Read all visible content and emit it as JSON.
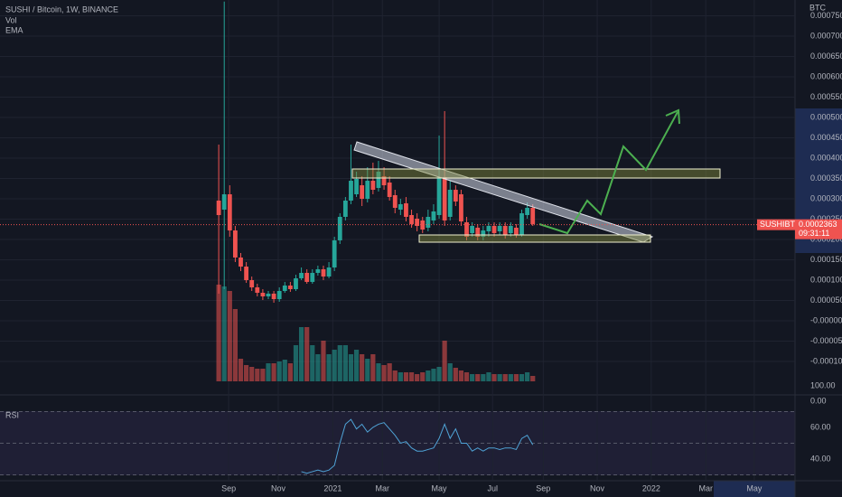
{
  "header": {
    "title": "SUSHI / Bitcoin, 1W, BINANCE",
    "indicators": [
      "Vol",
      "EMA"
    ],
    "currency": "BTC",
    "symbol": "SUSHIBTC",
    "countdown": "09:31:11"
  },
  "scale_labels": [
    "100.00",
    "0.00"
  ],
  "chart_data": [
    {
      "type": "candlestick",
      "up_color": "#26a69a",
      "down_color": "#ef5350",
      "categories": [
        null,
        null,
        null,
        null,
        null,
        null,
        null,
        null,
        null,
        null,
        null,
        null,
        null,
        null,
        null,
        null,
        null,
        null,
        null,
        null,
        null,
        null,
        null,
        null,
        null,
        null,
        null,
        null,
        null,
        null,
        null,
        null,
        null,
        null,
        null,
        null,
        null,
        null,
        null,
        null,
        null,
        null,
        null,
        null,
        null,
        null,
        null,
        null,
        null,
        null,
        null,
        null,
        null,
        null,
        null,
        null,
        null,
        null
      ],
      "open": [
        0.0002956,
        0.0002733,
        0.0003111,
        0.0002222,
        0.0001556,
        0.0001333,
        0.0001,
        8.22e-05,
        6.89e-05,
        6e-05,
        6.67e-05,
        5.33e-05,
        7.33e-05,
        8.67e-05,
        7.78e-05,
        0.0001044,
        0.0001178,
        9.56e-05,
        0.0001178,
        0.0001267,
        0.0001089,
        0.0001311,
        0.0001978,
        0.0002556,
        0.0002956,
        0.0003111,
        0.0003333,
        0.0003,
        0.0003444,
        0.0003267,
        0.0003556,
        0.00034,
        0.0003089,
        0.0002733,
        0.0002889,
        0.00026,
        0.0002511,
        0.0002467,
        0.0002289,
        0.0002467,
        0.00026,
        0.0003533,
        0.0002556,
        0.0003222,
        0.0003111,
        0.0002422,
        0.0002156,
        0.0002289,
        0.0002067,
        0.00022,
        0.0002333,
        0.00022,
        0.0002333,
        0.0002156,
        0.0002289,
        0.0002111,
        0.00026,
        0.0002778
      ],
      "high": [
        0.0004333,
        0.000785,
        0.0003333,
        0.0002333,
        0.0001667,
        0.0001444,
        0.0001089,
        9.11e-05,
        7.78e-05,
        7.33e-05,
        7.33e-05,
        8.22e-05,
        9.56e-05,
        9.56e-05,
        0.0001133,
        0.0001311,
        0.0001267,
        0.0001267,
        0.0001356,
        0.0001356,
        0.0001444,
        0.0002067,
        0.0002644,
        0.0003044,
        0.0004333,
        0.0003667,
        0.0003556,
        0.0003778,
        0.0003889,
        0.0003933,
        0.0003778,
        0.0003556,
        0.0003222,
        0.0003,
        0.0003044,
        0.0002733,
        0.0002644,
        0.0002556,
        0.0002733,
        0.0002867,
        0.0004556,
        0.0005156,
        0.0003444,
        0.0003333,
        0.0003222,
        0.0002556,
        0.0002422,
        0.0002378,
        0.0002333,
        0.0002422,
        0.0002422,
        0.0002422,
        0.0002422,
        0.0002422,
        0.0002378,
        0.0002733,
        0.0002911,
        0.0002867
      ],
      "low": [
        6.67e-05,
        7.78e-05,
        0.0002067,
        0.0001444,
        0.0001222,
        9.33e-05,
        7.33e-05,
        6e-05,
        5.11e-05,
        5.33e-05,
        4.44e-05,
        4.67e-05,
        6.89e-05,
        7.11e-05,
        7.33e-05,
        0.0001,
        9.11e-05,
        9.11e-05,
        0.0001111,
        0.0001,
        0.0001044,
        0.0001222,
        0.0001889,
        0.0002467,
        0.0002867,
        0.0003044,
        0.0002822,
        0.0002911,
        0.0003111,
        0.0003178,
        0.0003222,
        0.0002956,
        0.0002644,
        0.00026,
        0.0002444,
        0.0002289,
        0.00022,
        0.0002156,
        0.00022,
        0.0002378,
        0.0002511,
        0.0002333,
        0.0002467,
        0.0002822,
        0.0002333,
        0.0001978,
        0.0002067,
        0.0001978,
        0.0001978,
        0.0002067,
        0.0002067,
        0.0002111,
        0.0002022,
        0.0002067,
        0.0002044,
        0.0002067,
        0.0002511,
        0.0002333
      ],
      "close": [
        0.00026,
        0.0003111,
        0.0002222,
        0.0001556,
        0.0001333,
        0.0001,
        8.22e-05,
        6.89e-05,
        6e-05,
        6.67e-05,
        5.33e-05,
        7.33e-05,
        8.67e-05,
        7.78e-05,
        0.0001044,
        0.0001178,
        9.56e-05,
        0.0001178,
        0.0001267,
        0.0001089,
        0.0001311,
        0.0001978,
        0.0002556,
        0.0002956,
        0.0003444,
        0.0003489,
        0.0003,
        0.0003444,
        0.0003222,
        0.0003667,
        0.0003333,
        0.0003044,
        0.0002778,
        0.0002867,
        0.0002556,
        0.0002378,
        0.0002333,
        0.0002244,
        0.0002556,
        0.0002689,
        0.0003533,
        0.0002467,
        0.0003222,
        0.0002933,
        0.0002444,
        0.0002067,
        0.0002333,
        0.0002067,
        0.0002222,
        0.0002333,
        0.0002156,
        0.0002333,
        0.0002111,
        0.0002333,
        0.0002111,
        0.0002644,
        0.0002778,
        0.0002378
      ],
      "volume": [
        107,
        105,
        100,
        80,
        25,
        18,
        16,
        14,
        14,
        20,
        20,
        22,
        24,
        20,
        40,
        60,
        60,
        40,
        30,
        45,
        30,
        35,
        40,
        40,
        30,
        35,
        30,
        25,
        30,
        20,
        18,
        20,
        12,
        10,
        10,
        10,
        8,
        10,
        12,
        14,
        16,
        45,
        20,
        15,
        12,
        10,
        8,
        8,
        8,
        10,
        8,
        8,
        8,
        8,
        8,
        8,
        10,
        6
      ],
      "last_price": 0.0002363,
      "xlim": [
        -39.7,
        104.6
      ],
      "xticks": [
        {
          "value": 1.8,
          "label": "Sep"
        },
        {
          "value": 10.8,
          "label": "Nov"
        },
        {
          "value": 20.7,
          "label": "2021"
        },
        {
          "value": 29.7,
          "label": "Mar"
        },
        {
          "value": 40,
          "label": "May"
        },
        {
          "value": 49.7,
          "label": "Jul"
        },
        {
          "value": 58.9,
          "label": "Sep"
        },
        {
          "value": 68.7,
          "label": "Nov"
        },
        {
          "value": 78.5,
          "label": "2022"
        },
        {
          "value": 88.4,
          "label": "Mar"
        },
        {
          "value": 97.2,
          "label": "May"
        }
      ],
      "ylim": [
        -0.0001489,
        0.0007889
      ],
      "yticks": [
        {
          "value": 0.00075,
          "label": "0.0007500"
        },
        {
          "value": 0.0007,
          "label": "0.0007000"
        },
        {
          "value": 0.00065,
          "label": "0.0006500"
        },
        {
          "value": 0.0006,
          "label": "0.0006000"
        },
        {
          "value": 0.00055,
          "label": "0.0005500"
        },
        {
          "value": 0.0005,
          "label": "0.0005000"
        },
        {
          "value": 0.00045,
          "label": "0.0004500"
        },
        {
          "value": 0.0004,
          "label": "0.0004000"
        },
        {
          "value": 0.00035,
          "label": "0.0003500"
        },
        {
          "value": 0.0003,
          "label": "0.0003000"
        },
        {
          "value": 0.00025,
          "label": "0.0002500"
        },
        {
          "value": 0.0002,
          "label": "0.0002000"
        },
        {
          "value": 0.00015,
          "label": "0.0001500"
        },
        {
          "value": 0.0001,
          "label": "0.0001000"
        },
        {
          "value": 5e-05,
          "label": "0.0000500"
        },
        {
          "value": 0,
          "label": "-0.0000000"
        },
        {
          "value": -5e-05,
          "label": "-0.0000500"
        },
        {
          "value": -0.0001,
          "label": "-0.0001000"
        }
      ],
      "y2lim": [
        0,
        422
      ],
      "grid": true
    },
    {
      "type": "line",
      "title": "RSI",
      "color": "#4fa3d6",
      "values": [
        null,
        null,
        null,
        null,
        null,
        null,
        null,
        null,
        null,
        null,
        null,
        null,
        null,
        null,
        null,
        32,
        31,
        32,
        33,
        32,
        33,
        36,
        50,
        62,
        65,
        59,
        62,
        57,
        60,
        62,
        63,
        59,
        55,
        50,
        51,
        47,
        45,
        45,
        46,
        47,
        53,
        62,
        53,
        59,
        50,
        50,
        45,
        47,
        45,
        47,
        47,
        46,
        47,
        47,
        46,
        53,
        55,
        49
      ],
      "bands": [
        70,
        50,
        30
      ],
      "ylim": [
        27.4,
        73.1
      ],
      "yticks": [
        {
          "value": 60,
          "label": "60.00"
        },
        {
          "value": 40,
          "label": "40.00"
        }
      ]
    }
  ]
}
